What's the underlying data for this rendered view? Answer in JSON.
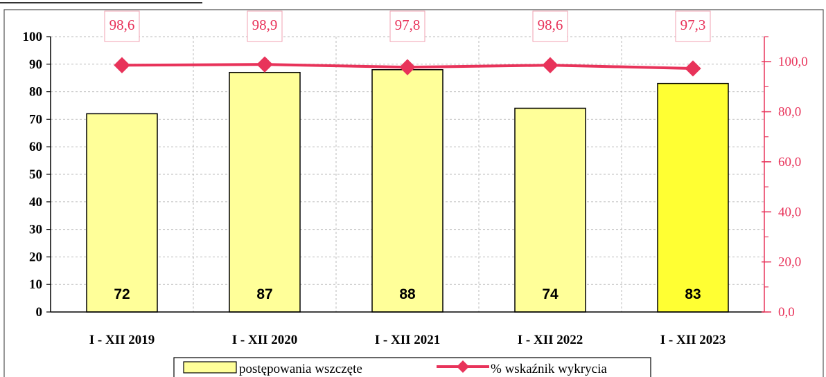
{
  "chart_data": {
    "type": "bar",
    "categories": [
      "I - XII 2019",
      "I - XII 2020",
      "I - XII 2021",
      "I - XII 2022",
      "I - XII 2023"
    ],
    "series": [
      {
        "name": "postępowania wszczęte",
        "type": "bar",
        "axis": "left",
        "values": [
          72,
          87,
          88,
          74,
          83
        ],
        "color": "#ffff99",
        "highlight_color": "#ffff33",
        "highlight_index": 4,
        "data_labels": [
          "72",
          "87",
          "88",
          "74",
          "83"
        ]
      },
      {
        "name": "% wskaźnik wykrycia",
        "type": "line",
        "axis": "right",
        "values": [
          98.6,
          98.9,
          97.8,
          98.6,
          97.3
        ],
        "color": "#e8335a",
        "marker": "diamond",
        "data_labels": [
          "98,6",
          "98,9",
          "97,8",
          "98,6",
          "97,3"
        ]
      }
    ],
    "y_left": {
      "min": 0,
      "max": 100,
      "ticks": [
        0,
        10,
        20,
        30,
        40,
        50,
        60,
        70,
        80,
        90,
        100
      ],
      "tick_labels": [
        "0",
        "10",
        "20",
        "30",
        "40",
        "50",
        "60",
        "70",
        "80",
        "90",
        "100"
      ]
    },
    "y_right": {
      "min": 0,
      "max": 110,
      "ticks": [
        0,
        20,
        40,
        60,
        80,
        100
      ],
      "tick_labels": [
        "0,0",
        "20,0",
        "40,0",
        "60,0",
        "80,0",
        "100,0"
      ],
      "color": "#e8335a"
    },
    "title": "",
    "xlabel": "",
    "ylabel": "",
    "grid": true,
    "legend": {
      "placement": "bottom",
      "entries": [
        "postępowania wszczęte",
        "% wskaźnik wykrycia"
      ]
    }
  }
}
